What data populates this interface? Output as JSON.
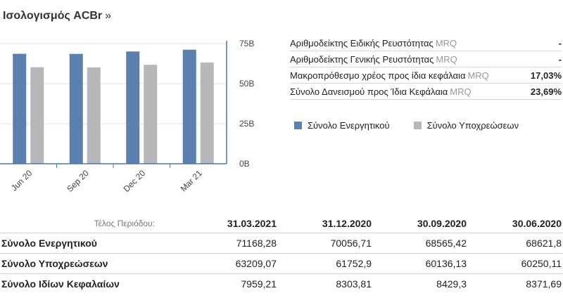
{
  "header": {
    "title": "Ισολογισμός ACBr",
    "arrow": "»"
  },
  "ratios": [
    {
      "label": "Αριθμοδείκτης Ειδικής Ρευστότητας",
      "tag": "MRQ",
      "value": "-"
    },
    {
      "label": "Αριθμοδείκτης Γενικής Ρευστότητας",
      "tag": "MRQ",
      "value": "-"
    },
    {
      "label": "Μακροπρόθεσμο χρέος προς ίδια κεφάλαια",
      "tag": "MRQ",
      "value": "17,03%"
    },
    {
      "label": "Σύνολο Δανεισμού προς Ίδια Κεφάλαια",
      "tag": "MRQ",
      "value": "23,69%"
    }
  ],
  "colors": {
    "assets": "#5b7fae",
    "liabilities": "#b7b7b7",
    "axis": "#4a78b0",
    "grid": "#e3e3e3"
  },
  "chart_data": {
    "type": "bar",
    "categories": [
      "Jun 20",
      "Sep 20",
      "Dec 20",
      "Mar 21"
    ],
    "series": [
      {
        "name": "Σύνολο Ενεργητικού",
        "values": [
          68.62,
          68.57,
          70.06,
          71.17
        ]
      },
      {
        "name": "Σύνολο Υποχρεώσεων",
        "values": [
          60.25,
          60.14,
          61.75,
          63.21
        ]
      }
    ],
    "ylim": [
      0,
      75
    ],
    "yticks": [
      0,
      25,
      50,
      75
    ],
    "ytick_labels": [
      "0B",
      "25B",
      "50B",
      "75B"
    ],
    "grid": true,
    "legend": "right"
  },
  "table": {
    "period_label": "Τέλος Περιόδου:",
    "columns": [
      "31.03.2021",
      "31.12.2020",
      "30.09.2020",
      "30.06.2020"
    ],
    "rows": [
      {
        "label": "Σύνολο Ενεργητικού",
        "values": [
          "71168,28",
          "70056,71",
          "68565,42",
          "68621,8"
        ]
      },
      {
        "label": "Σύνολο Υποχρεώσεων",
        "values": [
          "63209,07",
          "61752,9",
          "60136,13",
          "60250,11"
        ]
      },
      {
        "label": "Σύνολο Ιδίων Κεφαλαίων",
        "values": [
          "7959,21",
          "8303,81",
          "8429,3",
          "8371,69"
        ]
      }
    ]
  }
}
